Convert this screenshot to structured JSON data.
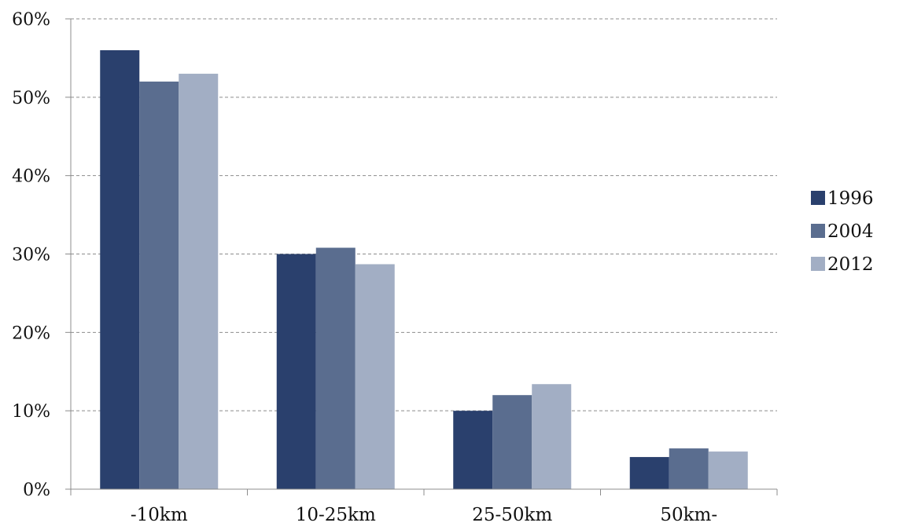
{
  "chart_data": {
    "type": "bar",
    "title": "",
    "xlabel": "",
    "ylabel": "",
    "categories": [
      "-10km",
      "10-25km",
      "25-50km",
      "50km-"
    ],
    "series": [
      {
        "name": "1996",
        "color": "#2a406d",
        "values": [
          56,
          30,
          10,
          4.1
        ]
      },
      {
        "name": "2004",
        "color": "#5a6d8f",
        "values": [
          52,
          30.8,
          12,
          5.2
        ]
      },
      {
        "name": "2012",
        "color": "#a2aec4",
        "values": [
          53,
          28.7,
          13.4,
          4.8
        ]
      }
    ],
    "ylim": [
      0,
      60
    ],
    "yticks": [
      0,
      10,
      20,
      30,
      40,
      50,
      60
    ],
    "ytick_labels": [
      "0%",
      "10%",
      "20%",
      "30%",
      "40%",
      "50%",
      "60%"
    ],
    "grid": true,
    "grid_style": "dashed",
    "legend_position": "right"
  }
}
